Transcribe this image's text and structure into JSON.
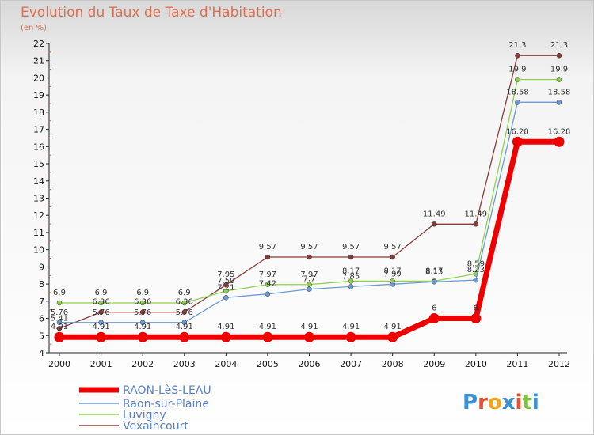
{
  "title": "Evolution du Taux de Taxe d'Habitation",
  "subtitle": "(en %)",
  "logo_text": "Proxiti",
  "chart_data": {
    "type": "line",
    "x": [
      2000,
      2001,
      2002,
      2003,
      2004,
      2005,
      2006,
      2007,
      2008,
      2009,
      2010,
      2011,
      2012
    ],
    "ylim": [
      4,
      22
    ],
    "yticks": [
      4,
      5,
      6,
      7,
      8,
      9,
      10,
      11,
      12,
      13,
      14,
      15,
      16,
      17,
      18,
      19,
      20,
      21,
      22
    ],
    "grid": false,
    "legend_position": "bottom-left",
    "series": [
      {
        "name": "RAON-LèS-LEAU",
        "color": "#ee0000",
        "width": 7,
        "values": [
          4.91,
          4.91,
          4.91,
          4.91,
          4.91,
          4.91,
          4.91,
          4.91,
          4.91,
          6,
          6,
          16.28,
          16.28
        ],
        "labels": [
          "4.91",
          "4.91",
          "4.91",
          "4.91",
          "4.91",
          "4.91",
          "4.91",
          "4.91",
          "4.91",
          "6",
          "6",
          "16.28",
          "16.28"
        ]
      },
      {
        "name": "Raon-sur-Plaine",
        "color": "#6b9bd2",
        "width": 1.3,
        "values": [
          5.76,
          5.76,
          5.76,
          5.76,
          7.21,
          7.42,
          7.7,
          7.85,
          7.99,
          8.13,
          8.23,
          18.58,
          18.58
        ],
        "labels": [
          "5.76",
          "5.76",
          "5.76",
          "5.76",
          "7.21",
          "7.42",
          "7.7",
          "7.85",
          "7.99",
          "8.13",
          "8.23",
          "18.58",
          "18.58"
        ]
      },
      {
        "name": "Luvigny",
        "color": "#8fd14f",
        "width": 1.3,
        "values": [
          6.9,
          6.9,
          6.9,
          6.9,
          7.59,
          7.97,
          7.97,
          8.17,
          8.17,
          8.17,
          8.59,
          19.9,
          19.9
        ],
        "labels": [
          "6.9",
          "6.9",
          "6.9",
          "6.9",
          "7.59",
          "7.97",
          "7.97",
          "8.17",
          "8.17",
          "8.17",
          "8.59",
          "19.9",
          "19.9"
        ]
      },
      {
        "name": "Vexaincourt",
        "color": "#8b3a3a",
        "width": 1.3,
        "values": [
          5.41,
          6.36,
          6.36,
          6.36,
          7.95,
          9.57,
          9.57,
          9.57,
          9.57,
          11.49,
          11.49,
          21.3,
          21.3
        ],
        "labels": [
          "5.41",
          "6.36",
          "6.36",
          "6.36",
          "7.95",
          "9.57",
          "9.57",
          "9.57",
          "9.57",
          "11.49",
          "11.49",
          "21.3",
          "21.3"
        ]
      }
    ]
  }
}
